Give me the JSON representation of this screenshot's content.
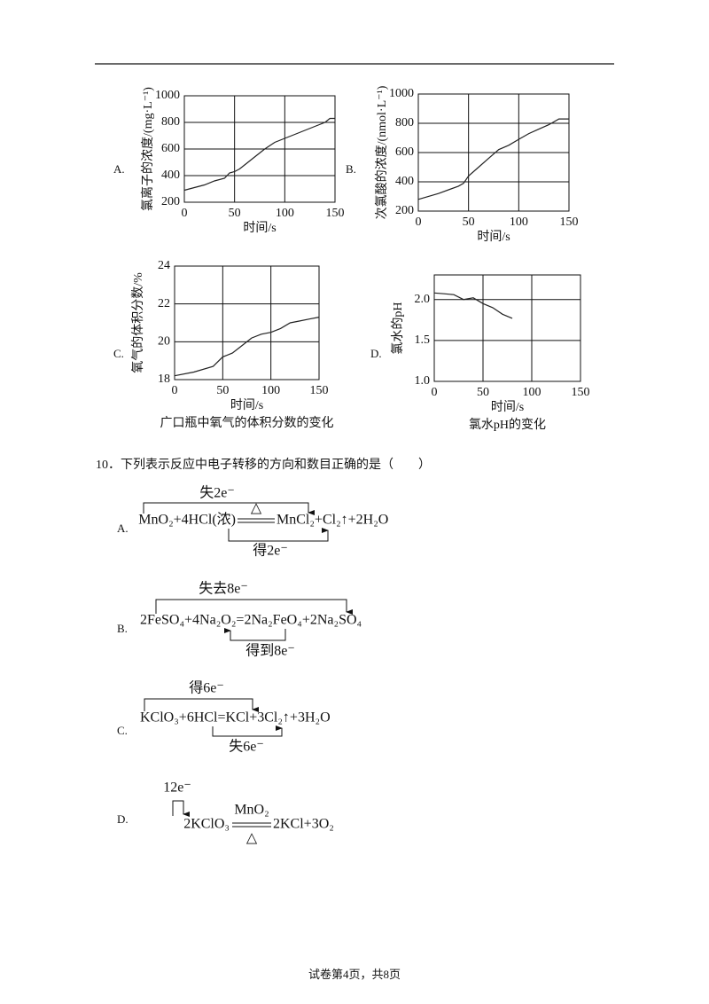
{
  "chart_data": [
    {
      "type": "line",
      "option": "A.",
      "ylabel": "氯离子的浓度/(mg·L⁻¹)",
      "xlabel": "时间/s",
      "xlim": [
        0,
        150
      ],
      "ylim": [
        200,
        1000
      ],
      "xticks": [
        0,
        50,
        100,
        150
      ],
      "yticks": [
        200,
        400,
        600,
        800,
        1000
      ],
      "grid": true,
      "color": "#222222",
      "x": [
        0,
        10,
        20,
        30,
        40,
        45,
        50,
        55,
        60,
        70,
        80,
        90,
        100,
        110,
        120,
        130,
        140,
        145,
        150
      ],
      "values": [
        290,
        310,
        330,
        360,
        380,
        420,
        430,
        450,
        480,
        540,
        600,
        650,
        680,
        710,
        740,
        770,
        800,
        830,
        830
      ]
    },
    {
      "type": "line",
      "option": "B.",
      "ylabel": "次氯酸的浓度/(nmol·L⁻¹)",
      "xlabel": "时间/s",
      "xlim": [
        0,
        150
      ],
      "ylim": [
        200,
        1000
      ],
      "xticks": [
        0,
        50,
        100,
        150
      ],
      "yticks": [
        200,
        400,
        600,
        800,
        1000
      ],
      "grid": true,
      "color": "#222222",
      "x": [
        0,
        20,
        40,
        45,
        50,
        60,
        70,
        80,
        90,
        100,
        110,
        120,
        130,
        140,
        150
      ],
      "values": [
        280,
        320,
        370,
        390,
        440,
        500,
        560,
        620,
        650,
        690,
        730,
        760,
        790,
        830,
        830
      ]
    },
    {
      "type": "line",
      "option": "C.",
      "ylabel": "氧气的体积分数/%",
      "xlabel": "时间/s",
      "caption": "广口瓶中氧气的体积分数的变化",
      "xlim": [
        0,
        150
      ],
      "ylim": [
        18,
        24
      ],
      "xticks": [
        0,
        50,
        100,
        150
      ],
      "yticks": [
        18,
        20,
        22,
        24
      ],
      "grid": true,
      "color": "#222222",
      "x": [
        0,
        20,
        40,
        50,
        60,
        70,
        80,
        90,
        100,
        110,
        120,
        130,
        140,
        150
      ],
      "values": [
        18.2,
        18.4,
        18.7,
        19.2,
        19.4,
        19.8,
        20.2,
        20.4,
        20.5,
        20.7,
        21.0,
        21.1,
        21.2,
        21.3
      ]
    },
    {
      "type": "line",
      "option": "D.",
      "ylabel": "氯水的pH",
      "xlabel": "时间/s",
      "caption": "氯水pH的变化",
      "xlim": [
        0,
        150
      ],
      "ylim": [
        1,
        2.3
      ],
      "xticks": [
        0,
        50,
        100,
        150
      ],
      "yticks": [
        {
          "value": 1,
          "label": "1.0"
        },
        {
          "value": 1.5,
          "label": "1.5"
        },
        {
          "value": 2,
          "label": "2.0"
        }
      ],
      "grid": true,
      "color": "#222222",
      "x": [
        0,
        10,
        20,
        30,
        40,
        50,
        60,
        70,
        80
      ],
      "values": [
        2.08,
        2.07,
        2.06,
        2.0,
        2.02,
        1.95,
        1.9,
        1.82,
        1.77
      ]
    }
  ],
  "question": {
    "number": "10．",
    "stem": "下列表示反应中电子转移的方向和数目正确的是（　　）",
    "options": [
      {
        "label": "A.",
        "left": "MnO₂+4HCl(浓)",
        "above": "△",
        "right": "MnCl₂+Cl₂↑+2H₂O",
        "top_transfer": "失2e⁻",
        "bottom_transfer": "得2e⁻"
      },
      {
        "label": "B.",
        "equation": "2FeSO₄+4Na₂O₂=2Na₂FeO₄+2Na₂SO₄",
        "top_transfer": "失去8e⁻",
        "bottom_transfer": "得到8e⁻"
      },
      {
        "label": "C.",
        "equation": "KClO₃+6HCl=KCl+3Cl₂↑+3H₂O",
        "top_transfer": "得6e⁻",
        "bottom_transfer": "失6e⁻"
      },
      {
        "label": "D.",
        "left": "2KClO₃",
        "above": "MnO₂",
        "below": "△",
        "right": "2KCl+3O₂",
        "top_transfer": "12e⁻"
      }
    ]
  },
  "footer": "试卷第4页，共8页"
}
